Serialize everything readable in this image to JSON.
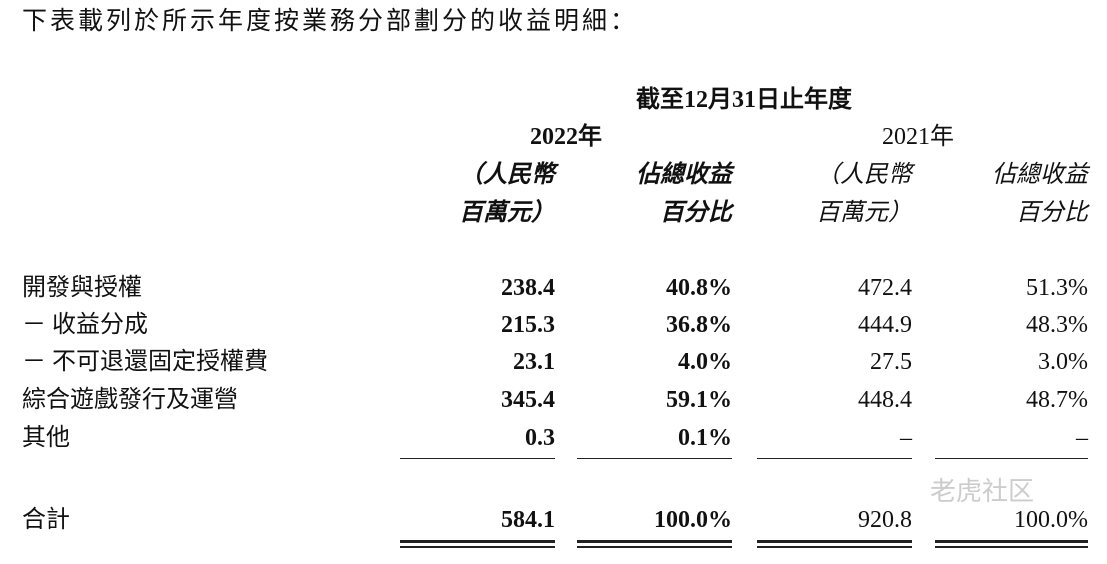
{
  "intro": "下表載列於所示年度按業務分部劃分的收益明細：",
  "table": {
    "period": "截至12月31日止年度",
    "years": [
      "2022年",
      "2021年"
    ],
    "column_headers": [
      [
        "（人民幣",
        "百萬元）"
      ],
      [
        "佔總收益",
        "百分比"
      ],
      [
        "（人民幣",
        "百萬元）"
      ],
      [
        "佔總收益",
        "百分比"
      ]
    ],
    "rows": [
      [
        "開發與授權",
        "238.4",
        "40.8%",
        "472.4",
        "51.3%"
      ],
      [
        "－ 收益分成",
        "215.3",
        "36.8%",
        "444.9",
        "48.3%"
      ],
      [
        "－ 不可退還固定授權費",
        "23.1",
        "4.0%",
        "27.5",
        "3.0%"
      ],
      [
        "綜合遊戲發行及運營",
        "345.4",
        "59.1%",
        "448.4",
        "48.7%"
      ],
      [
        "其他",
        "0.3",
        "0.1%",
        "–",
        "–"
      ]
    ],
    "total": [
      "合計",
      "584.1",
      "100.0%",
      "920.8",
      "100.0%"
    ]
  },
  "watermark": "老虎社区"
}
